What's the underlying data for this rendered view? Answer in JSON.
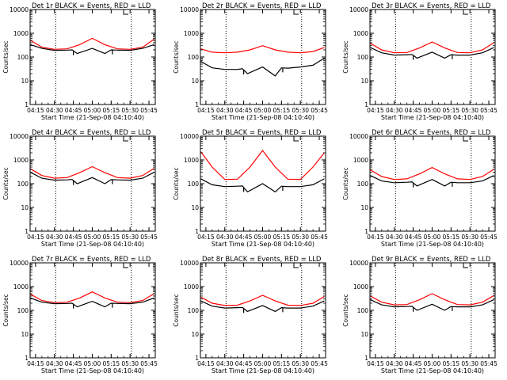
{
  "chart_data": [
    {
      "type": "line",
      "title": "Det 1r BLACK = Events, RED = LLD",
      "xlabel": "Start Time (21-Sep-08 04:10:40)",
      "ylabel": "Counts/sec",
      "x_ticks": [
        "04:15",
        "04:30",
        "04:45",
        "05:00",
        "05:15",
        "05:30",
        "05:45"
      ],
      "y_ticks": [
        "1",
        "10",
        "100",
        "1000",
        "10000"
      ],
      "yscale": "log",
      "ylim": [
        1,
        10000
      ],
      "xlim": [
        "04:10:40",
        "05:50:00"
      ],
      "dotted_lines": [
        "04:31",
        "05:31"
      ],
      "series": [
        {
          "color": "#000000",
          "x": [
            "04:11",
            "04:20",
            "04:30",
            "04:40",
            "04:44",
            "04:48",
            "05:00",
            "05:10",
            "05:15",
            "05:20",
            "05:30",
            "05:40",
            "05:49"
          ],
          "y": [
            330,
            230,
            190,
            195,
            200,
            140,
            230,
            140,
            200,
            195,
            190,
            230,
            330
          ],
          "gaps": [
            "04:45",
            "05:16"
          ]
        },
        {
          "color": "#ff0000",
          "x": [
            "04:11",
            "04:20",
            "04:30",
            "04:40",
            "04:50",
            "05:00",
            "05:10",
            "05:20",
            "05:30",
            "05:40",
            "05:49"
          ],
          "y": [
            500,
            260,
            210,
            220,
            330,
            610,
            330,
            220,
            210,
            260,
            560
          ]
        }
      ]
    },
    {
      "type": "line",
      "title": "Det 2r BLACK = Events, RED = LLD",
      "xlabel": "Start Time (21-Sep-08 04:10:40)",
      "ylabel": "Counts/sec",
      "x_ticks": [
        "04:15",
        "04:30",
        "04:45",
        "05:00",
        "05:15",
        "05:30",
        "05:45"
      ],
      "y_ticks": [
        "1",
        "10",
        "100",
        "1000",
        "10000"
      ],
      "yscale": "log",
      "ylim": [
        1,
        10000
      ],
      "xlim": [
        "04:10:40",
        "05:50:00"
      ],
      "dotted_lines": [
        "04:31",
        "05:31"
      ],
      "series": [
        {
          "color": "#000000",
          "x": [
            "04:11",
            "04:20",
            "04:30",
            "04:40",
            "04:44",
            "04:48",
            "05:00",
            "05:10",
            "05:15",
            "05:20",
            "05:30",
            "05:40",
            "05:49"
          ],
          "y": [
            65,
            35,
            30,
            30,
            32,
            20,
            38,
            16,
            35,
            34,
            38,
            45,
            90
          ],
          "gaps": [
            "04:45",
            "05:16"
          ]
        },
        {
          "color": "#ff0000",
          "x": [
            "04:11",
            "04:20",
            "04:30",
            "04:40",
            "04:50",
            "05:00",
            "05:10",
            "05:20",
            "05:30",
            "05:40",
            "05:49"
          ],
          "y": [
            220,
            160,
            150,
            160,
            200,
            300,
            200,
            160,
            150,
            170,
            250
          ]
        }
      ]
    },
    {
      "type": "line",
      "title": "Det 3r BLACK = Events, RED = LLD",
      "xlabel": "Start Time (21-Sep-08 04:10:40)",
      "ylabel": "Counts/sec",
      "x_ticks": [
        "04:15",
        "04:30",
        "04:45",
        "05:00",
        "05:15",
        "05:30",
        "05:45"
      ],
      "y_ticks": [
        "1",
        "10",
        "100",
        "1000",
        "10000"
      ],
      "yscale": "log",
      "ylim": [
        1,
        10000
      ],
      "xlim": [
        "04:10:40",
        "05:50:00"
      ],
      "dotted_lines": [
        "04:31",
        "05:31"
      ],
      "series": [
        {
          "color": "#000000",
          "x": [
            "04:11",
            "04:20",
            "04:30",
            "04:40",
            "04:44",
            "04:48",
            "05:00",
            "05:10",
            "05:15",
            "05:20",
            "05:30",
            "05:40",
            "05:49"
          ],
          "y": [
            250,
            150,
            120,
            125,
            128,
            90,
            160,
            90,
            125,
            120,
            120,
            150,
            250
          ],
          "gaps": [
            "04:45",
            "05:16"
          ]
        },
        {
          "color": "#ff0000",
          "x": [
            "04:11",
            "04:20",
            "04:30",
            "04:40",
            "04:50",
            "05:00",
            "05:10",
            "05:20",
            "05:30",
            "05:40",
            "05:49"
          ],
          "y": [
            380,
            200,
            150,
            155,
            240,
            430,
            240,
            155,
            150,
            200,
            400
          ]
        }
      ]
    },
    {
      "type": "line",
      "title": "Det 4r BLACK = Events, RED = LLD",
      "xlabel": "Start Time (21-Sep-08 04:10:40)",
      "ylabel": "Counts/sec",
      "x_ticks": [
        "04:15",
        "04:30",
        "04:45",
        "05:00",
        "05:15",
        "05:30",
        "05:45"
      ],
      "y_ticks": [
        "1",
        "10",
        "100",
        "1000",
        "10000"
      ],
      "yscale": "log",
      "ylim": [
        1,
        10000
      ],
      "xlim": [
        "04:10:40",
        "05:50:00"
      ],
      "dotted_lines": [
        "04:31",
        "05:31"
      ],
      "series": [
        {
          "color": "#000000",
          "x": [
            "04:11",
            "04:20",
            "04:30",
            "04:40",
            "04:44",
            "04:48",
            "05:00",
            "05:10",
            "05:15",
            "05:20",
            "05:30",
            "05:40",
            "05:49"
          ],
          "y": [
            300,
            170,
            140,
            145,
            150,
            100,
            180,
            100,
            148,
            145,
            140,
            170,
            300
          ],
          "gaps": [
            "04:45",
            "05:16"
          ]
        },
        {
          "color": "#ff0000",
          "x": [
            "04:11",
            "04:20",
            "04:30",
            "04:40",
            "04:50",
            "05:00",
            "05:10",
            "05:20",
            "05:30",
            "05:40",
            "05:49"
          ],
          "y": [
            420,
            220,
            170,
            180,
            290,
            520,
            290,
            180,
            170,
            220,
            440
          ]
        }
      ]
    },
    {
      "type": "line",
      "title": "Det 5r BLACK = Events, RED = LLD",
      "xlabel": "Start Time (21-Sep-08 04:10:40)",
      "ylabel": "Counts/sec",
      "x_ticks": [
        "04:15",
        "04:30",
        "04:45",
        "05:00",
        "05:15",
        "05:30",
        "05:45"
      ],
      "y_ticks": [
        "1",
        "10",
        "100",
        "1000",
        "10000"
      ],
      "yscale": "log",
      "ylim": [
        1,
        10000
      ],
      "xlim": [
        "04:10:40",
        "05:50:00"
      ],
      "dotted_lines": [
        "04:31",
        "05:31"
      ],
      "series": [
        {
          "color": "#000000",
          "x": [
            "04:11",
            "04:20",
            "04:30",
            "04:40",
            "04:44",
            "04:48",
            "05:00",
            "05:10",
            "05:15",
            "05:20",
            "05:30",
            "05:40",
            "05:49"
          ],
          "y": [
            160,
            90,
            75,
            78,
            80,
            45,
            100,
            45,
            78,
            75,
            75,
            90,
            160
          ],
          "gaps": [
            "04:45",
            "05:16"
          ]
        },
        {
          "color": "#ff0000",
          "x": [
            "04:11",
            "04:20",
            "04:30",
            "04:40",
            "04:50",
            "05:00",
            "05:10",
            "05:20",
            "05:30",
            "05:40",
            "05:49"
          ],
          "y": [
            2200,
            500,
            150,
            155,
            500,
            2500,
            500,
            155,
            150,
            500,
            2000
          ]
        }
      ]
    },
    {
      "type": "line",
      "title": "Det 6r BLACK = Events, RED = LLD",
      "xlabel": "Start Time (21-Sep-08 04:10:40)",
      "ylabel": "Counts/sec",
      "x_ticks": [
        "04:15",
        "04:30",
        "04:45",
        "05:00",
        "05:15",
        "05:30",
        "05:45"
      ],
      "y_ticks": [
        "1",
        "10",
        "100",
        "1000",
        "10000"
      ],
      "yscale": "log",
      "ylim": [
        1,
        10000
      ],
      "xlim": [
        "04:10:40",
        "05:50:00"
      ],
      "dotted_lines": [
        "04:31",
        "05:31"
      ],
      "series": [
        {
          "color": "#000000",
          "x": [
            "04:11",
            "04:20",
            "04:30",
            "04:40",
            "04:44",
            "04:48",
            "05:00",
            "05:10",
            "05:15",
            "05:20",
            "05:30",
            "05:40",
            "05:49"
          ],
          "y": [
            220,
            130,
            110,
            115,
            118,
            80,
            150,
            80,
            115,
            110,
            110,
            130,
            220
          ],
          "gaps": [
            "04:45",
            "05:16"
          ]
        },
        {
          "color": "#ff0000",
          "x": [
            "04:11",
            "04:20",
            "04:30",
            "04:40",
            "04:50",
            "05:00",
            "05:10",
            "05:20",
            "05:30",
            "05:40",
            "05:49"
          ],
          "y": [
            380,
            200,
            150,
            160,
            260,
            480,
            260,
            160,
            150,
            200,
            400
          ]
        }
      ]
    },
    {
      "type": "line",
      "title": "Det 7r BLACK = Events, RED = LLD",
      "xlabel": "Start Time (21-Sep-08 04:10:40)",
      "ylabel": "Counts/sec",
      "x_ticks": [
        "04:15",
        "04:30",
        "04:45",
        "05:00",
        "05:15",
        "05:30",
        "05:45"
      ],
      "y_ticks": [
        "1",
        "10",
        "100",
        "1000",
        "10000"
      ],
      "yscale": "log",
      "ylim": [
        1,
        10000
      ],
      "xlim": [
        "04:10:40",
        "05:50:00"
      ],
      "dotted_lines": [
        "04:31",
        "05:31"
      ],
      "series": [
        {
          "color": "#000000",
          "x": [
            "04:11",
            "04:20",
            "04:30",
            "04:40",
            "04:44",
            "04:48",
            "05:00",
            "05:10",
            "05:15",
            "05:20",
            "05:30",
            "05:40",
            "05:49"
          ],
          "y": [
            330,
            220,
            190,
            195,
            200,
            140,
            240,
            140,
            200,
            195,
            190,
            220,
            330
          ],
          "gaps": [
            "04:45",
            "05:16"
          ]
        },
        {
          "color": "#ff0000",
          "x": [
            "04:11",
            "04:20",
            "04:30",
            "04:40",
            "04:50",
            "05:00",
            "05:10",
            "05:20",
            "05:30",
            "05:40",
            "05:49"
          ],
          "y": [
            480,
            260,
            210,
            220,
            330,
            600,
            330,
            220,
            210,
            260,
            500
          ]
        }
      ]
    },
    {
      "type": "line",
      "title": "Det 8r BLACK = Events, RED = LLD",
      "xlabel": "Start Time (21-Sep-08 04:10:40)",
      "ylabel": "Counts/sec",
      "x_ticks": [
        "04:15",
        "04:30",
        "04:45",
        "05:00",
        "05:15",
        "05:30",
        "05:45"
      ],
      "y_ticks": [
        "1",
        "10",
        "100",
        "1000",
        "10000"
      ],
      "yscale": "log",
      "ylim": [
        1,
        10000
      ],
      "xlim": [
        "04:10:40",
        "05:50:00"
      ],
      "dotted_lines": [
        "04:31",
        "05:31"
      ],
      "series": [
        {
          "color": "#000000",
          "x": [
            "04:11",
            "04:20",
            "04:30",
            "04:40",
            "04:44",
            "04:48",
            "05:00",
            "05:10",
            "05:15",
            "05:20",
            "05:30",
            "05:40",
            "05:49"
          ],
          "y": [
            250,
            150,
            125,
            130,
            132,
            90,
            160,
            90,
            130,
            125,
            125,
            150,
            250
          ],
          "gaps": [
            "04:45",
            "05:16"
          ]
        },
        {
          "color": "#ff0000",
          "x": [
            "04:11",
            "04:20",
            "04:30",
            "04:40",
            "04:50",
            "05:00",
            "05:10",
            "05:20",
            "05:30",
            "05:40",
            "05:49"
          ],
          "y": [
            360,
            200,
            160,
            165,
            250,
            430,
            250,
            165,
            160,
            200,
            380
          ]
        }
      ]
    },
    {
      "type": "line",
      "title": "Det 9r BLACK = Events, RED = LLD",
      "xlabel": "Start Time (21-Sep-08 04:10:40)",
      "ylabel": "Counts/sec",
      "x_ticks": [
        "04:15",
        "04:30",
        "04:45",
        "05:00",
        "05:15",
        "05:30",
        "05:45"
      ],
      "y_ticks": [
        "1",
        "10",
        "100",
        "1000",
        "10000"
      ],
      "yscale": "log",
      "ylim": [
        1,
        10000
      ],
      "xlim": [
        "04:10:40",
        "05:50:00"
      ],
      "dotted_lines": [
        "04:31",
        "05:31"
      ],
      "series": [
        {
          "color": "#000000",
          "x": [
            "04:11",
            "04:20",
            "04:30",
            "04:40",
            "04:44",
            "04:48",
            "05:00",
            "05:10",
            "05:15",
            "05:20",
            "05:30",
            "05:40",
            "05:49"
          ],
          "y": [
            280,
            170,
            140,
            145,
            148,
            100,
            180,
            100,
            145,
            140,
            140,
            170,
            280
          ],
          "gaps": [
            "04:45",
            "05:16"
          ]
        },
        {
          "color": "#ff0000",
          "x": [
            "04:11",
            "04:20",
            "04:30",
            "04:40",
            "04:50",
            "05:00",
            "05:10",
            "05:20",
            "05:30",
            "05:40",
            "05:49"
          ],
          "y": [
            400,
            220,
            170,
            175,
            280,
            500,
            280,
            175,
            170,
            220,
            420
          ]
        }
      ]
    }
  ]
}
